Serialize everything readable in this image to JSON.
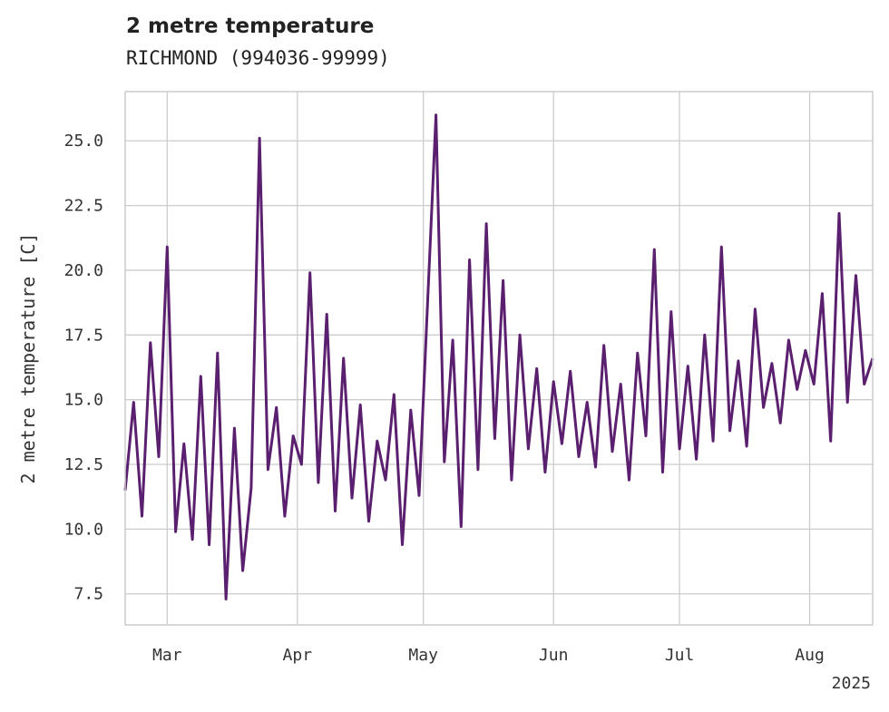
{
  "chart_data": {
    "type": "line",
    "title": "2 metre temperature",
    "subtitle": "RICHMOND (994036-99999)",
    "xlabel": "",
    "ylabel": "2 metre temperature [C]",
    "xlim": [
      "2025-02-19",
      "2025-08-16"
    ],
    "ylim": [
      6.3,
      26.9
    ],
    "x_ticks": [
      {
        "label": "Mar",
        "date": "2025-03-01"
      },
      {
        "label": "Apr",
        "date": "2025-04-01"
      },
      {
        "label": "May",
        "date": "2025-05-01"
      },
      {
        "label": "Jun",
        "date": "2025-06-01"
      },
      {
        "label": "Jul",
        "date": "2025-07-01"
      },
      {
        "label": "Aug",
        "date": "2025-08-01"
      }
    ],
    "x_offset_label": "2025",
    "y_ticks": [
      "7.5",
      "10.0",
      "12.5",
      "15.0",
      "17.5",
      "20.0",
      "22.5",
      "25.0"
    ],
    "grid": true,
    "line_color": "#5a1f6e",
    "series": [
      {
        "name": "",
        "x": [
          "2025-02-19",
          "2025-02-21",
          "2025-02-23",
          "2025-02-25",
          "2025-02-27",
          "2025-03-01",
          "2025-03-03",
          "2025-03-05",
          "2025-03-07",
          "2025-03-09",
          "2025-03-11",
          "2025-03-13",
          "2025-03-15",
          "2025-03-17",
          "2025-03-19",
          "2025-03-21",
          "2025-03-23",
          "2025-03-25",
          "2025-03-27",
          "2025-03-29",
          "2025-03-31",
          "2025-04-02",
          "2025-04-04",
          "2025-04-06",
          "2025-04-08",
          "2025-04-10",
          "2025-04-12",
          "2025-04-14",
          "2025-04-16",
          "2025-04-18",
          "2025-04-20",
          "2025-04-22",
          "2025-04-24",
          "2025-04-26",
          "2025-04-28",
          "2025-04-30",
          "2025-05-02",
          "2025-05-04",
          "2025-05-06",
          "2025-05-08",
          "2025-05-10",
          "2025-05-12",
          "2025-05-14",
          "2025-05-16",
          "2025-05-18",
          "2025-05-20",
          "2025-05-22",
          "2025-05-24",
          "2025-05-26",
          "2025-05-28",
          "2025-05-30",
          "2025-06-01",
          "2025-06-03",
          "2025-06-05",
          "2025-06-07",
          "2025-06-09",
          "2025-06-11",
          "2025-06-13",
          "2025-06-15",
          "2025-06-17",
          "2025-06-19",
          "2025-06-21",
          "2025-06-23",
          "2025-06-25",
          "2025-06-27",
          "2025-06-29",
          "2025-07-01",
          "2025-07-03",
          "2025-07-05",
          "2025-07-07",
          "2025-07-09",
          "2025-07-11",
          "2025-07-13",
          "2025-07-15",
          "2025-07-17",
          "2025-07-19",
          "2025-07-21",
          "2025-07-23",
          "2025-07-25",
          "2025-07-27",
          "2025-07-29",
          "2025-07-31",
          "2025-08-02",
          "2025-08-04",
          "2025-08-06",
          "2025-08-08",
          "2025-08-10",
          "2025-08-12",
          "2025-08-14",
          "2025-08-16"
        ],
        "y": [
          11.5,
          14.9,
          10.5,
          17.2,
          12.8,
          20.9,
          9.9,
          13.3,
          9.6,
          15.9,
          9.4,
          16.8,
          7.3,
          13.9,
          8.4,
          11.6,
          25.1,
          12.3,
          14.7,
          10.5,
          13.6,
          12.5,
          19.9,
          11.8,
          18.3,
          10.7,
          16.6,
          11.2,
          14.8,
          10.3,
          13.4,
          11.9,
          15.2,
          9.4,
          14.6,
          11.3,
          18.7,
          26.0,
          12.6,
          17.3,
          10.1,
          20.4,
          12.3,
          21.8,
          13.5,
          19.6,
          11.9,
          17.5,
          13.1,
          16.2,
          12.2,
          15.7,
          13.3,
          16.1,
          12.8,
          14.9,
          12.4,
          17.1,
          13.0,
          15.6,
          11.9,
          16.8,
          13.6,
          20.8,
          12.2,
          18.4,
          13.1,
          16.3,
          12.7,
          17.5,
          13.4,
          20.9,
          13.8,
          16.5,
          13.2,
          18.5,
          14.7,
          16.4,
          14.1,
          17.3,
          15.4,
          16.9,
          15.6,
          19.1,
          13.4,
          22.2,
          14.9,
          19.8,
          15.6,
          16.6
        ]
      }
    ]
  }
}
